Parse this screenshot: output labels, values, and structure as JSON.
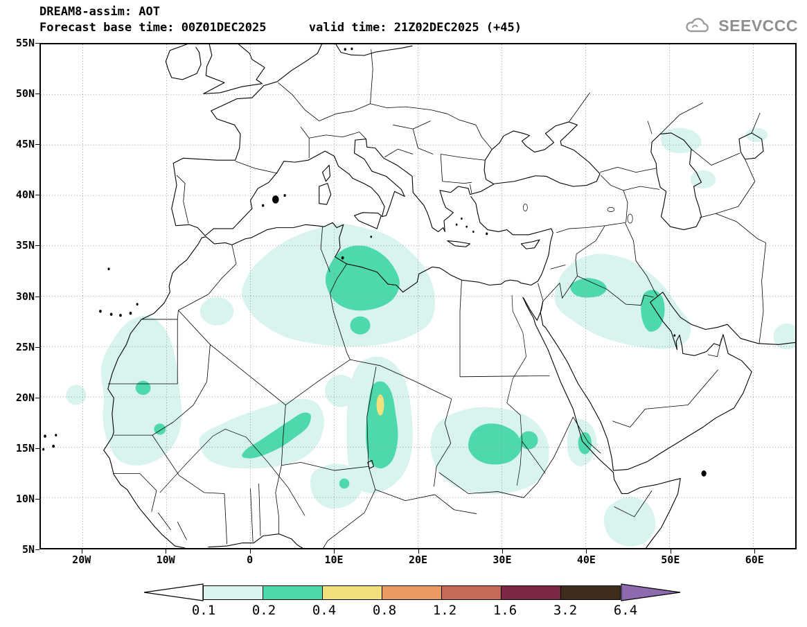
{
  "header": {
    "title": "DREAM8-assim: AOT",
    "subtitle": "Forecast base time: 00Z01DEC2025      valid time: 21Z02DEC2025 (+45)",
    "logo": "SEEVCCC"
  },
  "axes": {
    "x_ticks": [
      {
        "label": "20W",
        "lon": -20
      },
      {
        "label": "10W",
        "lon": -10
      },
      {
        "label": "0",
        "lon": 0
      },
      {
        "label": "10E",
        "lon": 10
      },
      {
        "label": "20E",
        "lon": 20
      },
      {
        "label": "30E",
        "lon": 30
      },
      {
        "label": "40E",
        "lon": 40
      },
      {
        "label": "50E",
        "lon": 50
      },
      {
        "label": "60E",
        "lon": 60
      }
    ],
    "y_ticks": [
      {
        "label": "55N",
        "lat": 55
      },
      {
        "label": "50N",
        "lat": 50
      },
      {
        "label": "45N",
        "lat": 45
      },
      {
        "label": "40N",
        "lat": 40
      },
      {
        "label": "35N",
        "lat": 35
      },
      {
        "label": "30N",
        "lat": 30
      },
      {
        "label": "25N",
        "lat": 25
      },
      {
        "label": "20N",
        "lat": 20
      },
      {
        "label": "15N",
        "lat": 15
      },
      {
        "label": "10N",
        "lat": 10
      },
      {
        "label": "5N",
        "lat": 5
      }
    ]
  },
  "colorbar": {
    "levels": [
      "0.1",
      "0.2",
      "0.4",
      "0.8",
      "1.2",
      "1.6",
      "3.2",
      "6.4"
    ],
    "segment_colors": [
      "#d9f4ef",
      "#4ed9ad",
      "#f0e17a",
      "#ea9a60",
      "#c46a57",
      "#7c2744",
      "#3e2d1d"
    ],
    "under_color": "#ffffff",
    "over_color": "#8e6bae"
  },
  "chart_data": {
    "type": "heatmap",
    "subtype": "filled_contour_geographic_map",
    "title": "DREAM8-assim: AOT",
    "forecast_base_time": "00Z01DEC2025",
    "valid_time": "21Z02DEC2025 (+45)",
    "lon_range": [
      -25,
      65
    ],
    "lat_range": [
      5,
      55
    ],
    "grid": {
      "lon_step": 10,
      "lat_step": 5,
      "style": "dotted"
    },
    "contour_levels": [
      0.1,
      0.2,
      0.4,
      0.8,
      1.2,
      1.6,
      3.2,
      6.4
    ],
    "level_colors": {
      "0.1": "#d9f4ef",
      "0.2": "#4ed9ad",
      "0.4": "#f0e17a",
      "0.8": "#ea9a60",
      "1.2": "#c46a57",
      "1.6": "#7c2744",
      "3.2": "#3e2d1d",
      "6.4": "#8e6bae"
    },
    "regions": [
      {
        "level": 0.1,
        "shape": "poly",
        "pts": [
          [
            -1,
            30.5
          ],
          [
            0,
            32.5
          ],
          [
            2,
            34.2
          ],
          [
            4.5,
            35.6
          ],
          [
            7.5,
            36.6
          ],
          [
            10.5,
            37.2
          ],
          [
            13.5,
            36.8
          ],
          [
            16.5,
            36
          ],
          [
            19,
            34.5
          ],
          [
            21,
            32.5
          ],
          [
            22,
            30
          ],
          [
            21.5,
            27.5
          ],
          [
            19,
            26
          ],
          [
            15.5,
            25.2
          ],
          [
            11.5,
            25
          ],
          [
            7.5,
            25.3
          ],
          [
            4,
            26
          ],
          [
            1,
            27.5
          ],
          [
            -0.5,
            29
          ]
        ]
      },
      {
        "level": 0.1,
        "shape": "poly",
        "pts": [
          [
            -17.5,
            20
          ],
          [
            -17.8,
            23
          ],
          [
            -16.5,
            25.5
          ],
          [
            -14.5,
            27.5
          ],
          [
            -12,
            28
          ],
          [
            -10,
            26.5
          ],
          [
            -9,
            24
          ],
          [
            -8.5,
            21
          ],
          [
            -8.2,
            18
          ],
          [
            -9,
            15.5
          ],
          [
            -11,
            13.8
          ],
          [
            -13.5,
            13.2
          ],
          [
            -15.8,
            13.8
          ],
          [
            -17.2,
            16
          ],
          [
            -17.6,
            18
          ]
        ]
      },
      {
        "level": 0.1,
        "shape": "poly",
        "pts": [
          [
            -6,
            16
          ],
          [
            -3,
            17.5
          ],
          [
            0,
            18.5
          ],
          [
            3,
            19.3
          ],
          [
            6,
            19.8
          ],
          [
            8,
            19.3
          ],
          [
            8.8,
            17.5
          ],
          [
            8,
            15.3
          ],
          [
            6,
            13.8
          ],
          [
            3,
            13.1
          ],
          [
            0,
            12.9
          ],
          [
            -3,
            13.1
          ],
          [
            -5.3,
            14
          ]
        ]
      },
      {
        "level": 0.1,
        "shape": "poly",
        "pts": [
          [
            12,
            21.5
          ],
          [
            13,
            23.3
          ],
          [
            15,
            24
          ],
          [
            17,
            23.4
          ],
          [
            18.5,
            21.5
          ],
          [
            19.2,
            18.5
          ],
          [
            19.3,
            15
          ],
          [
            18.3,
            12.4
          ],
          [
            16.2,
            10.8
          ],
          [
            13.8,
            10.5
          ],
          [
            12.2,
            11.8
          ],
          [
            11.6,
            14
          ],
          [
            11.5,
            17
          ],
          [
            11.6,
            19.5
          ]
        ]
      },
      {
        "level": 0.1,
        "shape": "poly",
        "pts": [
          [
            7.5,
            12.5
          ],
          [
            9.5,
            13.3
          ],
          [
            11.5,
            13.2
          ],
          [
            13,
            12.4
          ],
          [
            13.3,
            10.8
          ],
          [
            12,
            9.4
          ],
          [
            9.8,
            8.9
          ],
          [
            8,
            9.6
          ],
          [
            7.2,
            11
          ]
        ]
      },
      {
        "level": 0.1,
        "shape": "ellipse",
        "c": [
          10.8,
          20.6
        ],
        "r": [
          1.9,
          1.6
        ]
      },
      {
        "level": 0.1,
        "shape": "poly",
        "pts": [
          [
            21.5,
            15.5
          ],
          [
            22.5,
            17.5
          ],
          [
            25,
            18.6
          ],
          [
            28,
            19
          ],
          [
            31.5,
            18.6
          ],
          [
            34,
            17.5
          ],
          [
            35.5,
            15.5
          ],
          [
            35.3,
            13
          ],
          [
            33.5,
            11.2
          ],
          [
            30,
            10.4
          ],
          [
            26.5,
            10.5
          ],
          [
            23.5,
            11.6
          ],
          [
            22,
            13.3
          ]
        ]
      },
      {
        "level": 0.1,
        "shape": "poly",
        "pts": [
          [
            36.3,
            30
          ],
          [
            37,
            32
          ],
          [
            38.8,
            33.5
          ],
          [
            41.5,
            34.2
          ],
          [
            44.5,
            33.8
          ],
          [
            47,
            32.7
          ],
          [
            49.3,
            31
          ],
          [
            51,
            29
          ],
          [
            52.5,
            27.2
          ],
          [
            52,
            25.5
          ],
          [
            49.8,
            24.8
          ],
          [
            47,
            24.9
          ],
          [
            44,
            25.4
          ],
          [
            41.2,
            26.2
          ],
          [
            38.6,
            27.5
          ],
          [
            36.8,
            28.7
          ]
        ]
      },
      {
        "level": 0.1,
        "shape": "poly",
        "pts": [
          [
            38.2,
            17.3
          ],
          [
            39.5,
            17.8
          ],
          [
            40.8,
            17
          ],
          [
            41.3,
            15.5
          ],
          [
            40.7,
            13.8
          ],
          [
            39.3,
            13.1
          ],
          [
            38.1,
            13.9
          ],
          [
            37.8,
            15.6
          ]
        ]
      },
      {
        "level": 0.1,
        "shape": "poly",
        "pts": [
          [
            42.5,
            8.8
          ],
          [
            44,
            9.8
          ],
          [
            46,
            10
          ],
          [
            47.8,
            9
          ],
          [
            48.3,
            7
          ],
          [
            47,
            5.5
          ],
          [
            44.8,
            5.2
          ],
          [
            43,
            6
          ],
          [
            42.2,
            7.4
          ]
        ]
      },
      {
        "level": 0.1,
        "shape": "poly",
        "pts": [
          [
            49.3,
            46.3
          ],
          [
            51,
            46.7
          ],
          [
            52.8,
            46.4
          ],
          [
            53.8,
            45.5
          ],
          [
            53.3,
            44.6
          ],
          [
            51.5,
            44.2
          ],
          [
            49.9,
            44.4
          ],
          [
            49,
            45.3
          ]
        ]
      },
      {
        "level": 0.1,
        "shape": "ellipse",
        "c": [
          54,
          41.6
        ],
        "r": [
          1.5,
          0.9
        ]
      },
      {
        "level": 0.1,
        "shape": "ellipse",
        "c": [
          64,
          26
        ],
        "r": [
          1.6,
          1.3
        ]
      },
      {
        "level": 0.1,
        "shape": "ellipse",
        "c": [
          -20.8,
          20.2
        ],
        "r": [
          1.2,
          1
        ]
      },
      {
        "level": 0.1,
        "shape": "ellipse",
        "c": [
          -4,
          28.5
        ],
        "r": [
          2,
          1.4
        ]
      },
      {
        "level": 0.1,
        "shape": "ellipse",
        "c": [
          60.4,
          46
        ],
        "r": [
          1.3,
          0.7
        ]
      },
      {
        "level": 0.2,
        "shape": "poly",
        "pts": [
          [
            9,
            32
          ],
          [
            10,
            33.8
          ],
          [
            11.5,
            34.8
          ],
          [
            13.5,
            35
          ],
          [
            15.5,
            34.3
          ],
          [
            17,
            33
          ],
          [
            17.8,
            31.3
          ],
          [
            17,
            29.7
          ],
          [
            15,
            28.8
          ],
          [
            12.5,
            28.6
          ],
          [
            10.5,
            29.2
          ],
          [
            9.3,
            30.5
          ]
        ]
      },
      {
        "level": 0.2,
        "shape": "ellipse",
        "c": [
          13.1,
          27.1
        ],
        "r": [
          1.2,
          0.9
        ]
      },
      {
        "level": 0.2,
        "shape": "poly",
        "pts": [
          [
            -0.5,
            14.8
          ],
          [
            1,
            15.6
          ],
          [
            2.8,
            16.6
          ],
          [
            4.6,
            17.6
          ],
          [
            6.2,
            18.4
          ],
          [
            7.2,
            18.2
          ],
          [
            6.8,
            17
          ],
          [
            5.2,
            15.9
          ],
          [
            3.4,
            14.9
          ],
          [
            1.5,
            14.2
          ],
          [
            0,
            13.9
          ],
          [
            -1,
            14.1
          ]
        ]
      },
      {
        "level": 0.2,
        "shape": "poly",
        "pts": [
          [
            14.5,
            21
          ],
          [
            15.8,
            21.5
          ],
          [
            16.8,
            20.5
          ],
          [
            17.3,
            18.5
          ],
          [
            17.6,
            16
          ],
          [
            17,
            13.8
          ],
          [
            15.6,
            12.9
          ],
          [
            14.3,
            13.6
          ],
          [
            13.8,
            15.5
          ],
          [
            13.9,
            18
          ]
        ]
      },
      {
        "level": 0.2,
        "shape": "poly",
        "pts": [
          [
            26.5,
            16.5
          ],
          [
            28,
            17.3
          ],
          [
            30,
            17.2
          ],
          [
            31.8,
            16.3
          ],
          [
            32.3,
            14.8
          ],
          [
            31,
            13.6
          ],
          [
            28.8,
            13.3
          ],
          [
            27,
            13.8
          ],
          [
            26,
            15
          ]
        ]
      },
      {
        "level": 0.2,
        "shape": "ellipse",
        "c": [
          33.2,
          15.7
        ],
        "r": [
          1.1,
          0.9
        ]
      },
      {
        "level": 0.2,
        "shape": "poly",
        "pts": [
          [
            38.3,
            31.2
          ],
          [
            40,
            31.8
          ],
          [
            41.8,
            31.5
          ],
          [
            42.5,
            30.7
          ],
          [
            41.5,
            30
          ],
          [
            39.5,
            29.9
          ],
          [
            38.4,
            30.4
          ]
        ]
      },
      {
        "level": 0.2,
        "shape": "poly",
        "pts": [
          [
            47,
            30.3
          ],
          [
            48.2,
            30.6
          ],
          [
            49.2,
            29.8
          ],
          [
            49.4,
            28.3
          ],
          [
            48.8,
            26.9
          ],
          [
            47.6,
            26.5
          ],
          [
            46.8,
            27.5
          ],
          [
            46.6,
            29
          ]
        ]
      },
      {
        "level": 0.2,
        "shape": "ellipse",
        "c": [
          39.9,
          15.4
        ],
        "r": [
          0.8,
          1.1
        ]
      },
      {
        "level": 0.2,
        "shape": "ellipse",
        "c": [
          -12.8,
          20.9
        ],
        "r": [
          0.9,
          0.7
        ]
      },
      {
        "level": 0.2,
        "shape": "ellipse",
        "c": [
          -10.8,
          16.8
        ],
        "r": [
          0.7,
          0.55
        ]
      },
      {
        "level": 0.2,
        "shape": "ellipse",
        "c": [
          11.2,
          11.4
        ],
        "r": [
          0.6,
          0.5
        ]
      },
      {
        "level": 0.4,
        "shape": "ellipse",
        "c": [
          15.5,
          19.2
        ],
        "r": [
          0.45,
          1.05
        ]
      }
    ]
  }
}
